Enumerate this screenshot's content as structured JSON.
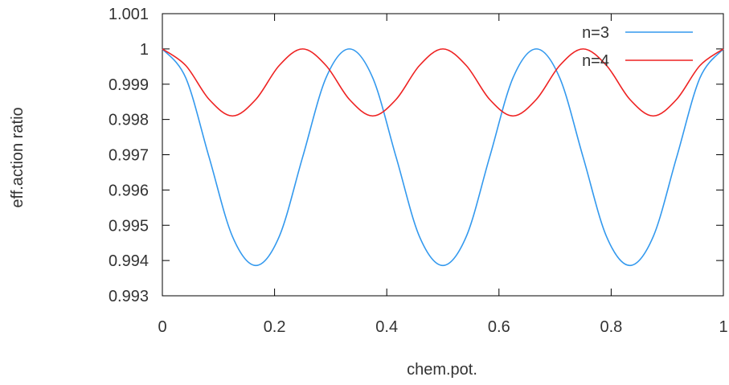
{
  "chart_data": {
    "type": "line",
    "xlabel": "chem.pot.",
    "ylabel": "eff.action ratio",
    "xlim": [
      0,
      1
    ],
    "ylim": [
      0.993,
      1.001
    ],
    "xticks": [
      0,
      0.2,
      0.4,
      0.6,
      0.8,
      1
    ],
    "xtick_labels": [
      "0",
      "0.2",
      "0.4",
      "0.6",
      "0.8",
      "1"
    ],
    "yticks": [
      0.993,
      0.994,
      0.995,
      0.996,
      0.997,
      0.998,
      0.999,
      1,
      1.001
    ],
    "ytick_labels": [
      "0.993",
      "0.994",
      "0.995",
      "0.996",
      "0.997",
      "0.998",
      "0.999",
      "1",
      "1.001"
    ],
    "grid": false,
    "legend": "top-right",
    "series": [
      {
        "name": "n=3",
        "color": "#3399ee",
        "x": [
          0,
          0.0417,
          0.0833,
          0.125,
          0.1667,
          0.2083,
          0.25,
          0.2917,
          0.3333,
          0.375,
          0.4167,
          0.4583,
          0.5,
          0.5417,
          0.5833,
          0.625,
          0.6667,
          0.7083,
          0.75,
          0.7917,
          0.8333,
          0.875,
          0.9167,
          0.9583,
          1
        ],
        "y": [
          1.0,
          0.99918,
          0.99693,
          0.99468,
          0.99386,
          0.99468,
          0.99693,
          0.99918,
          1.0,
          0.99918,
          0.99693,
          0.99468,
          0.99386,
          0.99468,
          0.99693,
          0.99918,
          1.0,
          0.99918,
          0.99693,
          0.99468,
          0.99386,
          0.99468,
          0.99693,
          0.99918,
          1.0
        ]
      },
      {
        "name": "n=4",
        "color": "#ee2222",
        "x": [
          0,
          0.0417,
          0.0833,
          0.125,
          0.1667,
          0.2083,
          0.25,
          0.2917,
          0.3333,
          0.375,
          0.4167,
          0.4583,
          0.5,
          0.5417,
          0.5833,
          0.625,
          0.6667,
          0.7083,
          0.75,
          0.7917,
          0.8333,
          0.875,
          0.9167,
          0.9583,
          1
        ],
        "y": [
          1.0,
          0.99953,
          0.99857,
          0.9981,
          0.99857,
          0.99953,
          1.0,
          0.99953,
          0.99857,
          0.9981,
          0.99857,
          0.99953,
          1.0,
          0.99953,
          0.99857,
          0.9981,
          0.99857,
          0.99953,
          1.0,
          0.99953,
          0.99857,
          0.9981,
          0.99857,
          0.99953,
          1.0
        ]
      }
    ]
  }
}
